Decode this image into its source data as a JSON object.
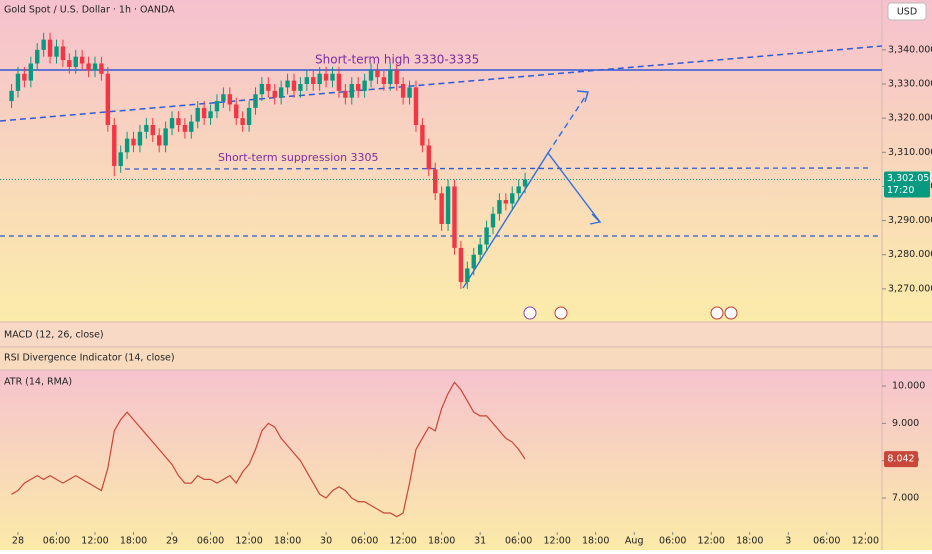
{
  "chart_data": [
    {
      "type": "candlestick",
      "title": "Gold Spot / U.S. Dollar · 1h · OANDA",
      "currency": "USD",
      "up_color": "#089981",
      "down_color": "#f23645",
      "x": [
        -1,
        0,
        1,
        2,
        3,
        4,
        5,
        6,
        7,
        8,
        9,
        10,
        11,
        12,
        13,
        14,
        15,
        16,
        17,
        18,
        19,
        20,
        21,
        22,
        23,
        24,
        25,
        26,
        27,
        28,
        29,
        30,
        31,
        32,
        33,
        34,
        35,
        36,
        37,
        38,
        39,
        40,
        41,
        42,
        43,
        44,
        45,
        46,
        47,
        48,
        49,
        50,
        51,
        52,
        53,
        54,
        55,
        56,
        57,
        58,
        59,
        60,
        61,
        62,
        63,
        64,
        65,
        66,
        67,
        68,
        69,
        70,
        71,
        72,
        73,
        74,
        75,
        76,
        77,
        78,
        79
      ],
      "open": [
        3325,
        3328,
        3333,
        3331,
        3336,
        3340,
        3343,
        3338,
        3341,
        3337,
        3335,
        3338,
        3336,
        3334,
        3336,
        3333,
        3318,
        3306,
        3310,
        3314,
        3312,
        3316,
        3318,
        3315,
        3312,
        3317,
        3320,
        3318,
        3316,
        3319,
        3323,
        3320,
        3322,
        3325,
        3327,
        3324,
        3320,
        3318,
        3323,
        3327,
        3330,
        3328,
        3326,
        3329,
        3331,
        3328,
        3330,
        3332,
        3330,
        3333,
        3331,
        3333,
        3328,
        3326,
        3330,
        3328,
        3331,
        3334,
        3332,
        3330,
        3334,
        3330,
        3326,
        3329,
        3318,
        3312,
        3305,
        3298,
        3289,
        3300,
        3282,
        3272,
        3276,
        3280,
        3283,
        3288,
        3292,
        3296,
        3295,
        3298,
        3300
      ],
      "high": [
        3330,
        3335,
        3335,
        3338,
        3342,
        3345,
        3345,
        3343,
        3343,
        3339,
        3340,
        3340,
        3338,
        3338,
        3338,
        3335,
        3320,
        3312,
        3316,
        3316,
        3318,
        3320,
        3320,
        3317,
        3319,
        3322,
        3322,
        3320,
        3321,
        3325,
        3325,
        3324,
        3327,
        3329,
        3329,
        3326,
        3322,
        3325,
        3329,
        3332,
        3332,
        3330,
        3331,
        3333,
        3333,
        3332,
        3334,
        3334,
        3335,
        3335,
        3335,
        3335,
        3330,
        3332,
        3332,
        3333,
        3336,
        3336,
        3334,
        3336,
        3336,
        3332,
        3331,
        3331,
        3320,
        3314,
        3307,
        3300,
        3302,
        3302,
        3284,
        3278,
        3282,
        3285,
        3290,
        3294,
        3298,
        3298,
        3300,
        3302,
        3304
      ],
      "low": [
        3323,
        3326,
        3329,
        3329,
        3334,
        3338,
        3336,
        3336,
        3335,
        3333,
        3333,
        3334,
        3332,
        3332,
        3331,
        3316,
        3303,
        3304,
        3308,
        3310,
        3310,
        3314,
        3313,
        3310,
        3310,
        3315,
        3316,
        3314,
        3314,
        3317,
        3318,
        3318,
        3320,
        3323,
        3322,
        3318,
        3316,
        3316,
        3321,
        3325,
        3326,
        3324,
        3324,
        3327,
        3326,
        3326,
        3328,
        3328,
        3328,
        3329,
        3329,
        3326,
        3324,
        3324,
        3326,
        3326,
        3329,
        3330,
        3328,
        3328,
        3328,
        3324,
        3324,
        3316,
        3310,
        3303,
        3296,
        3287,
        3287,
        3280,
        3270,
        3270,
        3274,
        3278,
        3281,
        3286,
        3290,
        3293,
        3293,
        3296,
        3298
      ],
      "close": [
        3328,
        3333,
        3331,
        3336,
        3340,
        3343,
        3338,
        3341,
        3337,
        3335,
        3338,
        3336,
        3334,
        3336,
        3333,
        3318,
        3306,
        3310,
        3314,
        3312,
        3316,
        3318,
        3315,
        3312,
        3317,
        3320,
        3318,
        3316,
        3319,
        3323,
        3320,
        3322,
        3325,
        3327,
        3324,
        3320,
        3318,
        3323,
        3327,
        3330,
        3328,
        3326,
        3329,
        3331,
        3328,
        3330,
        3332,
        3330,
        3333,
        3331,
        3333,
        3328,
        3326,
        3330,
        3328,
        3331,
        3334,
        3332,
        3330,
        3334,
        3330,
        3326,
        3329,
        3318,
        3312,
        3305,
        3298,
        3289,
        3300,
        3282,
        3272,
        3276,
        3280,
        3283,
        3288,
        3292,
        3296,
        3295,
        3298,
        3300,
        3302.05
      ],
      "last_price": {
        "value": 3302.05,
        "label": "3,302.050"
      },
      "countdown": "17:20",
      "annotations": [
        "Short-term high 3330-3335",
        "Short-term suppression 3305"
      ],
      "xlim": [
        -2.8,
        134.6
      ],
      "ylim": [
        3260.3,
        3354.6
      ],
      "yticks": [
        {
          "value": 3270,
          "label": "3,270.000"
        },
        {
          "value": 3280,
          "label": "3,280.000"
        },
        {
          "value": 3290,
          "label": "3,290.000"
        },
        {
          "value": 3300,
          "label": "3,300.000"
        },
        {
          "value": 3310,
          "label": "3,310.000"
        },
        {
          "value": 3320,
          "label": "3,320.000"
        },
        {
          "value": 3330,
          "label": "3,330.000"
        },
        {
          "value": 3340,
          "label": "3,340.000"
        }
      ]
    },
    {
      "type": "line",
      "title": "ATR (14, RMA)",
      "color": "#c8463a",
      "x": [
        -1,
        0,
        1,
        2,
        3,
        4,
        5,
        6,
        7,
        8,
        9,
        10,
        11,
        12,
        13,
        14,
        15,
        16,
        17,
        18,
        19,
        20,
        21,
        22,
        23,
        24,
        25,
        26,
        27,
        28,
        29,
        30,
        31,
        32,
        33,
        34,
        35,
        36,
        37,
        38,
        39,
        40,
        41,
        42,
        43,
        44,
        45,
        46,
        47,
        48,
        49,
        50,
        51,
        52,
        53,
        54,
        55,
        56,
        57,
        58,
        59,
        60,
        61,
        62,
        63,
        64,
        65,
        66,
        67,
        68,
        69,
        70,
        71,
        72,
        73,
        74,
        75,
        76,
        77,
        78,
        79
      ],
      "values": [
        7.1,
        7.2,
        7.4,
        7.5,
        7.6,
        7.5,
        7.6,
        7.5,
        7.4,
        7.5,
        7.6,
        7.5,
        7.4,
        7.3,
        7.2,
        7.8,
        8.8,
        9.1,
        9.3,
        9.1,
        8.9,
        8.7,
        8.5,
        8.3,
        8.1,
        7.9,
        7.6,
        7.4,
        7.4,
        7.6,
        7.5,
        7.5,
        7.4,
        7.5,
        7.6,
        7.4,
        7.7,
        7.9,
        8.3,
        8.8,
        9.0,
        8.9,
        8.6,
        8.4,
        8.2,
        8.0,
        7.7,
        7.4,
        7.1,
        7.0,
        7.2,
        7.3,
        7.2,
        7.0,
        6.9,
        6.9,
        6.8,
        6.7,
        6.6,
        6.6,
        6.5,
        6.6,
        7.4,
        8.3,
        8.6,
        8.9,
        8.8,
        9.4,
        9.8,
        10.1,
        9.9,
        9.6,
        9.3,
        9.2,
        9.2,
        9.0,
        8.8,
        8.6,
        8.5,
        8.3,
        8.042
      ],
      "xlim": [
        -2.8,
        134.6
      ],
      "ylim": [
        6.09,
        10.43
      ],
      "yticks": [
        {
          "value": 7,
          "label": "7.000"
        },
        {
          "value": 8,
          "label": "8.000"
        },
        {
          "value": 9,
          "label": "9.000"
        },
        {
          "value": 10,
          "label": "10.000"
        }
      ],
      "xticks": [
        {
          "value": 0,
          "label": "28"
        },
        {
          "value": 6,
          "label": "06:00"
        },
        {
          "value": 12,
          "label": "12:00"
        },
        {
          "value": 18,
          "label": "18:00"
        },
        {
          "value": 24,
          "label": "29"
        },
        {
          "value": 30,
          "label": "06:00"
        },
        {
          "value": 36,
          "label": "12:00"
        },
        {
          "value": 42,
          "label": "18:00"
        },
        {
          "value": 48,
          "label": "30"
        },
        {
          "value": 54,
          "label": "06:00"
        },
        {
          "value": 60,
          "label": "12:00"
        },
        {
          "value": 66,
          "label": "18:00"
        },
        {
          "value": 72,
          "label": "31"
        },
        {
          "value": 78,
          "label": "06:00"
        },
        {
          "value": 84,
          "label": "12:00"
        },
        {
          "value": 90,
          "label": "18:00"
        },
        {
          "value": 96,
          "label": "Aug"
        },
        {
          "value": 102,
          "label": "06:00"
        },
        {
          "value": 108,
          "label": "12:00"
        },
        {
          "value": 114,
          "label": "18:00"
        },
        {
          "value": 120,
          "label": "3"
        },
        {
          "value": 126,
          "label": "06:00"
        },
        {
          "value": 132,
          "label": "12:00"
        }
      ]
    }
  ],
  "panes": {
    "macd": "MACD (12, 26, close)",
    "rsi": "RSI Divergence Indicator (14, close)"
  }
}
